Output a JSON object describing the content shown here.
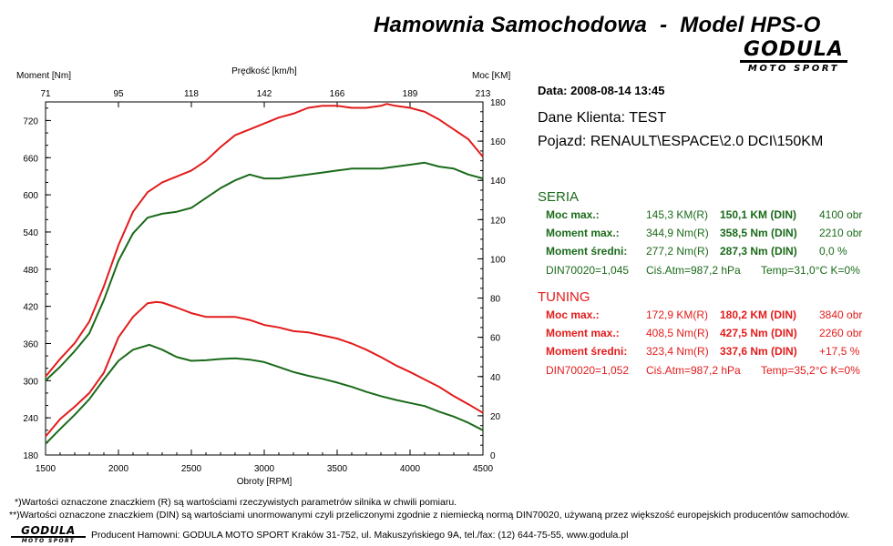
{
  "header": {
    "title_left": "Hamownia Samochodowa",
    "title_sep": "-",
    "title_right": "Model HPS-O",
    "logo_text": "GODULA",
    "logo_sub": "MOTO SPORT"
  },
  "info": {
    "date": "Data: 2008-08-14  13:45",
    "client": "Dane Klienta: TEST",
    "vehicle": "Pojazd: RENAULT\\ESPACE\\2.0 DCI\\150KM"
  },
  "seria": {
    "title": "SERIA",
    "rows": [
      {
        "label": "Moc max.:",
        "v1": "145,3 KM(R)",
        "v2": "150,1 KM (DIN)",
        "v3": "4100 obr"
      },
      {
        "label": "Moment max.:",
        "v1": "344,9 Nm(R)",
        "v2": "358,5 Nm (DIN)",
        "v3": "2210 obr"
      },
      {
        "label": "Moment średni:",
        "v1": "277,2 Nm(R)",
        "v2": "287,3 Nm (DIN)",
        "v3": "0,0 %"
      }
    ],
    "footer_row": {
      "din": "DIN70020=1,045",
      "atm": "Ciś.Atm=987,2 hPa",
      "temp": "Temp=31,0°C  K=0%"
    }
  },
  "tuning": {
    "title": "TUNING",
    "rows": [
      {
        "label": "Moc max.:",
        "v1": "172,9 KM(R)",
        "v2": "180,2 KM (DIN)",
        "v3": "3840 obr"
      },
      {
        "label": "Moment max.:",
        "v1": "408,5 Nm(R)",
        "v2": "427,5 Nm (DIN)",
        "v3": "2260 obr"
      },
      {
        "label": "Moment średni:",
        "v1": "323,4 Nm(R)",
        "v2": "337,6 Nm (DIN)",
        "v3": "+17,5 %"
      }
    ],
    "footer_row": {
      "din": "DIN70020=1,052",
      "atm": "Ciś.Atm=987,2 hPa",
      "temp": "Temp=35,2°C  K=0%"
    }
  },
  "footnotes": {
    "fn1": "*)Wartości oznaczone znaczkiem (R) są wartościami rzeczywistych parametrów silnika w chwili pomiaru.",
    "fn2": "**)Wartości oznaczone znaczkiem (DIN) są wartościami unormowanymi czyli przeliczonymi zgodnie z niemiecką normą DIN70020, używaną przez większość europejskich producentów samochodów.",
    "producer": "Producent Hamowni: GODULA MOTO SPORT Kraków 31-752, ul. Makuszyńskiego 9A, tel./fax: (12) 644-75-55, www.godula.pl"
  },
  "colors": {
    "seria": "#1a6a1a",
    "tuning": "#e31b1b",
    "bg": "#ffffff",
    "axis": "#000000"
  },
  "chart_data": {
    "type": "line",
    "xlabel": "Obroty [RPM]",
    "ylabel_left": "Moment [Nm]",
    "ylabel_right": "Moc [KM]",
    "top_axis_label": "Prędkość [km/h]",
    "xlim": [
      1500,
      4500
    ],
    "ylim_left": [
      180,
      750
    ],
    "ylim_right": [
      0,
      180
    ],
    "x_ticks": [
      1500,
      2000,
      2500,
      3000,
      3500,
      4000,
      4500
    ],
    "y_left_ticks": [
      180,
      240,
      300,
      360,
      420,
      480,
      540,
      600,
      660,
      720
    ],
    "y_right_ticks": [
      0,
      20,
      40,
      60,
      80,
      100,
      120,
      140,
      160,
      180
    ],
    "top_ticks": [
      "71",
      "95",
      "118",
      "142",
      "166",
      "189",
      "213"
    ],
    "grid": false,
    "series": [
      {
        "name": "TUNING",
        "axis": "right",
        "color": "#e31b1b",
        "x": [
          1500,
          1600,
          1700,
          1800,
          1900,
          2000,
          2100,
          2200,
          2300,
          2400,
          2500,
          2600,
          2700,
          2800,
          2900,
          3000,
          3100,
          3200,
          3300,
          3400,
          3500,
          3600,
          3700,
          3800,
          3840,
          3900,
          4000,
          4100,
          4200,
          4300,
          4400,
          4500
        ],
        "y": [
          40,
          49,
          57,
          68,
          86,
          107,
          124,
          134,
          139,
          142,
          145,
          150,
          157,
          163,
          166,
          169,
          172,
          174,
          177,
          178,
          178,
          177,
          177,
          178,
          179,
          178,
          177,
          175,
          171,
          166,
          161,
          152
        ]
      },
      {
        "name": "SERIA",
        "axis": "right",
        "color": "#1a6a1a",
        "x": [
          1500,
          1600,
          1700,
          1800,
          1900,
          2000,
          2100,
          2200,
          2300,
          2400,
          2500,
          2600,
          2700,
          2800,
          2900,
          3000,
          3100,
          3200,
          3300,
          3400,
          3500,
          3600,
          3700,
          3800,
          3900,
          4000,
          4100,
          4200,
          4300,
          4400,
          4500
        ],
        "y": [
          38,
          45,
          53,
          62,
          79,
          99,
          113,
          121,
          123,
          124,
          126,
          131,
          136,
          140,
          143,
          141,
          141,
          142,
          143,
          144,
          145,
          146,
          146,
          146,
          147,
          148,
          149,
          147,
          146,
          143,
          141
        ]
      },
      {
        "name": "TUNING",
        "axis": "left",
        "color": "#e31b1b",
        "x": [
          1500,
          1600,
          1700,
          1800,
          1900,
          2000,
          2100,
          2200,
          2260,
          2300,
          2400,
          2500,
          2600,
          2700,
          2800,
          2900,
          3000,
          3100,
          3200,
          3300,
          3400,
          3500,
          3600,
          3700,
          3800,
          3900,
          4000,
          4100,
          4200,
          4300,
          4400,
          4500
        ],
        "y": [
          210,
          238,
          258,
          280,
          313,
          370,
          403,
          425,
          427,
          426,
          418,
          409,
          403,
          403,
          403,
          398,
          390,
          386,
          380,
          378,
          373,
          368,
          360,
          350,
          338,
          325,
          314,
          302,
          290,
          275,
          262,
          248
        ]
      },
      {
        "name": "SERIA",
        "axis": "left",
        "color": "#1a6a1a",
        "x": [
          1500,
          1600,
          1700,
          1800,
          1900,
          2000,
          2100,
          2200,
          2210,
          2300,
          2400,
          2500,
          2600,
          2700,
          2800,
          2900,
          3000,
          3100,
          3200,
          3300,
          3400,
          3500,
          3600,
          3700,
          3800,
          3900,
          4000,
          4100,
          4200,
          4300,
          4400,
          4500
        ],
        "y": [
          198,
          222,
          245,
          270,
          302,
          332,
          350,
          357,
          358,
          350,
          338,
          332,
          333,
          335,
          336,
          334,
          330,
          322,
          314,
          308,
          303,
          297,
          290,
          282,
          275,
          269,
          264,
          259,
          250,
          242,
          232,
          220
        ]
      }
    ]
  }
}
